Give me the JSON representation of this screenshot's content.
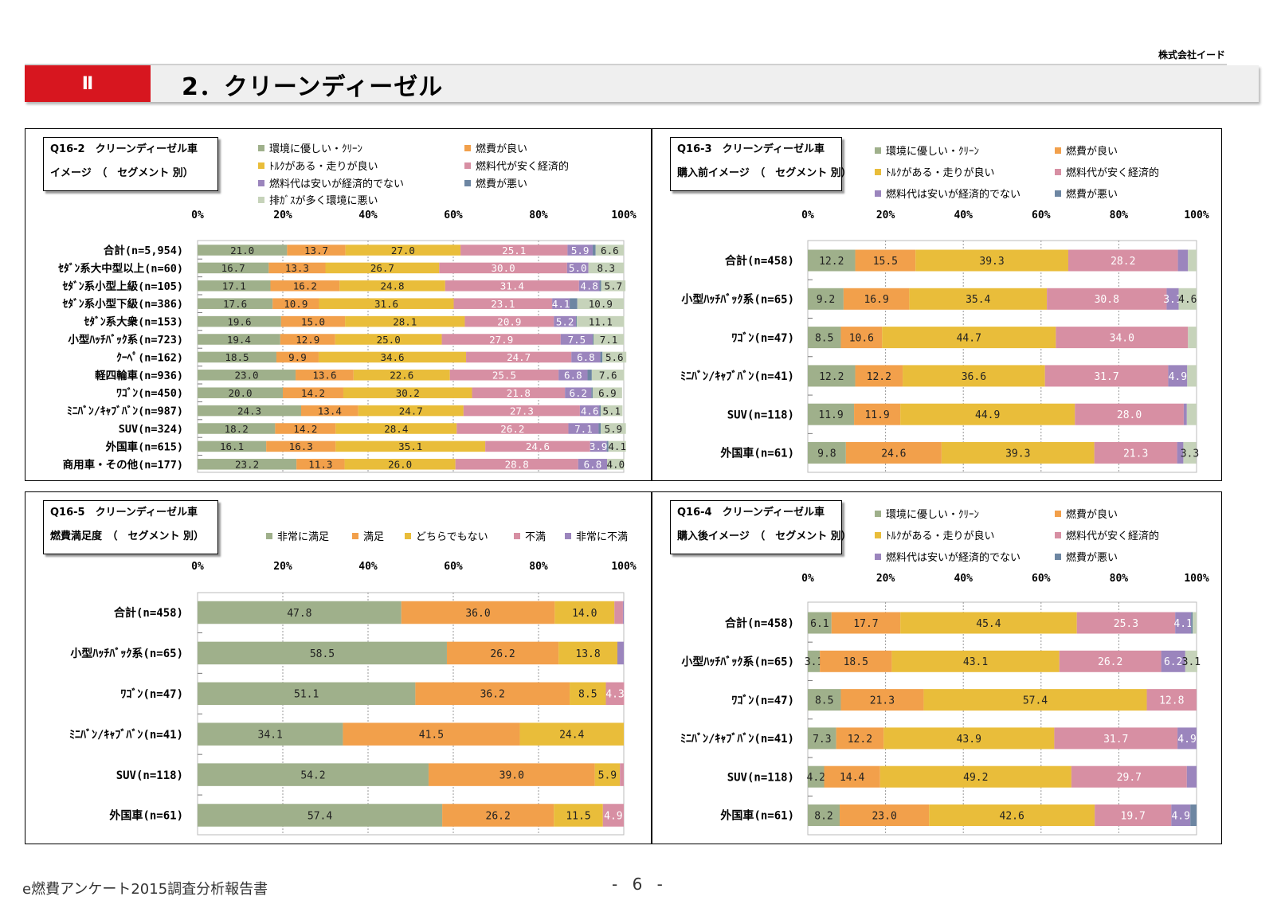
{
  "company": "株式会社イード",
  "chapter": "Ⅱ",
  "section_title": "2．クリーンディーゼル",
  "footer_left": "e燃費アンケート2015調査分析報告書",
  "footer_page": "- 6 -",
  "colors": {
    "green": "#9fb08b",
    "orange": "#f2a04b",
    "yellow": "#e9bd3a",
    "pink": "#d78fa3",
    "purple": "#9b85bd",
    "blue": "#6d86a2",
    "lightgreen": "#c6d3ba"
  },
  "chart_data": [
    {
      "id": "q16_2",
      "type": "bar",
      "title_lines": [
        "Q16-2　クリーンディーゼル車",
        "イメージ　（　セグメント 別）"
      ],
      "axis_ticks": [
        "0%",
        "20%",
        "40%",
        "60%",
        "80%",
        "100%"
      ],
      "legend": [
        {
          "label": "環境に優しい・ｸﾘｰﾝ",
          "color": "#9fb08b"
        },
        {
          "label": "燃費が良い",
          "color": "#f2a04b"
        },
        {
          "label": "ﾄﾙｸがある・走りが良い",
          "color": "#e9bd3a"
        },
        {
          "label": "燃料代が安く経済的",
          "color": "#d78fa3"
        },
        {
          "label": "燃料代は安いが経済的でない",
          "color": "#9b85bd"
        },
        {
          "label": "燃費が悪い",
          "color": "#6d86a2"
        },
        {
          "label": "排ｶﾞｽが多く環境に悪い",
          "color": "#c6d3ba"
        }
      ],
      "categories": [
        "合計(n=5,954)",
        "ｾﾀﾞﾝ系大中型以上(n=60)",
        "ｾﾀﾞﾝ系小型上級(n=105)",
        "ｾﾀﾞﾝ系小型下級(n=386)",
        "ｾﾀﾞﾝ系大衆(n=153)",
        "小型ﾊｯﾁﾊﾞｯｸ系(n=723)",
        "ｸｰﾍﾟ(n=162)",
        "軽四輪車(n=936)",
        "ﾜｺﾞﾝ(n=450)",
        "ﾐﾆﾊﾞﾝ/ｷｬﾌﾞﾊﾞﾝ(n=987)",
        "SUV(n=324)",
        "外国車(n=615)",
        "商用車・その他(n=177)"
      ],
      "series": [
        {
          "name": "環境に優しい・ｸﾘｰﾝ",
          "values": [
            21.0,
            16.7,
            17.1,
            17.6,
            19.6,
            19.4,
            18.5,
            23.0,
            20.0,
            24.3,
            18.2,
            16.1,
            23.2
          ]
        },
        {
          "name": "燃費が良い",
          "values": [
            13.7,
            13.3,
            16.2,
            10.9,
            15.0,
            12.9,
            9.9,
            13.6,
            14.2,
            13.4,
            14.2,
            16.3,
            11.3
          ]
        },
        {
          "name": "ﾄﾙｸがある・走りが良い",
          "values": [
            27.0,
            26.7,
            24.8,
            31.6,
            28.1,
            25.0,
            34.6,
            22.6,
            30.2,
            24.7,
            28.4,
            35.1,
            26.0
          ]
        },
        {
          "name": "燃料代が安く経済的",
          "values": [
            25.1,
            30.0,
            31.4,
            23.1,
            20.9,
            27.9,
            24.7,
            25.5,
            21.8,
            27.3,
            26.2,
            24.6,
            28.8
          ]
        },
        {
          "name": "燃料代は安いが経済的でない",
          "values": [
            5.9,
            5.0,
            4.8,
            4.1,
            5.2,
            7.5,
            6.8,
            6.8,
            6.2,
            4.6,
            7.1,
            3.9,
            6.8
          ]
        },
        {
          "name": "燃費が悪い",
          "values": [
            0.7,
            0,
            0.4,
            1.8,
            0.2,
            0.2,
            0.5,
            1.0,
            0.3,
            0.3,
            0.5,
            0.4,
            0
          ]
        },
        {
          "name": "排ｶﾞｽが多く環境に悪い",
          "values": [
            6.6,
            8.3,
            5.7,
            10.9,
            11.1,
            7.1,
            5.6,
            7.6,
            6.9,
            5.1,
            5.9,
            4.1,
            4.0
          ]
        }
      ]
    },
    {
      "id": "q16_3",
      "type": "bar",
      "title_lines": [
        "Q16-3　クリーンディーゼル車",
        "購入前イメージ　（　セグメント 別）"
      ],
      "axis_ticks": [
        "0%",
        "20%",
        "40%",
        "60%",
        "80%",
        "100%"
      ],
      "legend": [
        {
          "label": "環境に優しい・ｸﾘｰﾝ",
          "color": "#9fb08b"
        },
        {
          "label": "燃費が良い",
          "color": "#f2a04b"
        },
        {
          "label": "ﾄﾙｸがある・走りが良い",
          "color": "#e9bd3a"
        },
        {
          "label": "燃料代が安く経済的",
          "color": "#d78fa3"
        },
        {
          "label": "燃料代は安いが経済的でない",
          "color": "#9b85bd"
        },
        {
          "label": "燃費が悪い",
          "color": "#6d86a2"
        }
      ],
      "categories": [
        "合計(n=458)",
        "小型ﾊｯﾁﾊﾞｯｸ系(n=65)",
        "ﾜｺﾞﾝ(n=47)",
        "ﾐﾆﾊﾞﾝ/ｷｬﾌﾞﾊﾞﾝ(n=41)",
        "SUV(n=118)",
        "外国車(n=61)"
      ],
      "series": [
        {
          "name": "環境に優しい・ｸﾘｰﾝ",
          "values": [
            12.2,
            9.2,
            8.5,
            12.2,
            11.9,
            9.8
          ]
        },
        {
          "name": "燃費が良い",
          "values": [
            15.5,
            16.9,
            10.6,
            12.2,
            11.9,
            24.6
          ]
        },
        {
          "name": "ﾄﾙｸがある・走りが良い",
          "values": [
            39.3,
            35.4,
            44.7,
            36.6,
            44.9,
            39.3
          ]
        },
        {
          "name": "燃料代が安く経済的",
          "values": [
            28.2,
            30.8,
            34.0,
            31.7,
            28.0,
            21.3
          ]
        },
        {
          "name": "燃料代は安いが経済的でない",
          "values": [
            2.6,
            3.1,
            0,
            4.9,
            0.8,
            1.6
          ]
        },
        {
          "name": "燃費が悪い",
          "values": [
            0,
            0,
            0,
            0,
            0,
            0
          ]
        },
        {
          "name": "",
          "values": [
            2.2,
            4.6,
            2.2,
            2.4,
            2.5,
            3.3
          ]
        }
      ]
    },
    {
      "id": "q16_5",
      "type": "bar",
      "title_lines": [
        "Q16-5　クリーンディーゼル車",
        "燃費満足度　（　セグメント 別）"
      ],
      "axis_ticks": [
        "0%",
        "20%",
        "40%",
        "60%",
        "80%",
        "100%"
      ],
      "legend": [
        {
          "label": "非常に満足",
          "color": "#9fb08b"
        },
        {
          "label": "満足",
          "color": "#f2a04b"
        },
        {
          "label": "どちらでもない",
          "color": "#e9bd3a"
        },
        {
          "label": "不満",
          "color": "#d78fa3"
        },
        {
          "label": "非常に不満",
          "color": "#9b85bd"
        }
      ],
      "categories": [
        "合計(n=458)",
        "小型ﾊｯﾁﾊﾞｯｸ系(n=65)",
        "ﾜｺﾞﾝ(n=47)",
        "ﾐﾆﾊﾞﾝ/ｷｬﾌﾞﾊﾞﾝ(n=41)",
        "SUV(n=118)",
        "外国車(n=61)"
      ],
      "series": [
        {
          "name": "非常に満足",
          "values": [
            47.8,
            58.5,
            51.1,
            34.1,
            54.2,
            57.4
          ]
        },
        {
          "name": "満足",
          "values": [
            36.0,
            26.2,
            36.2,
            41.5,
            39.0,
            26.2
          ]
        },
        {
          "name": "どちらでもない",
          "values": [
            14.0,
            13.8,
            8.5,
            24.4,
            5.9,
            11.5
          ]
        },
        {
          "name": "不満",
          "values": [
            2.0,
            0,
            4.3,
            0,
            0.9,
            4.9
          ]
        },
        {
          "name": "非常に不満",
          "values": [
            0.2,
            1.5,
            0,
            0,
            0,
            0
          ]
        }
      ]
    },
    {
      "id": "q16_4",
      "type": "bar",
      "title_lines": [
        "Q16-4　クリーンディーゼル車",
        "購入後イメージ　（　セグメント 別）"
      ],
      "axis_ticks": [
        "0%",
        "20%",
        "40%",
        "60%",
        "80%",
        "100%"
      ],
      "legend": [
        {
          "label": "環境に優しい・ｸﾘｰﾝ",
          "color": "#9fb08b"
        },
        {
          "label": "燃費が良い",
          "color": "#f2a04b"
        },
        {
          "label": "ﾄﾙｸがある・走りが良い",
          "color": "#e9bd3a"
        },
        {
          "label": "燃料代が安く経済的",
          "color": "#d78fa3"
        },
        {
          "label": "燃料代は安いが経済的でない",
          "color": "#9b85bd"
        },
        {
          "label": "燃費が悪い",
          "color": "#6d86a2"
        }
      ],
      "categories": [
        "合計(n=458)",
        "小型ﾊｯﾁﾊﾞｯｸ系(n=65)",
        "ﾜｺﾞﾝ(n=47)",
        "ﾐﾆﾊﾞﾝ/ｷｬﾌﾞﾊﾞﾝ(n=41)",
        "SUV(n=118)",
        "外国車(n=61)"
      ],
      "series": [
        {
          "name": "環境に優しい・ｸﾘｰﾝ",
          "values": [
            6.1,
            3.1,
            8.5,
            7.3,
            4.2,
            8.2
          ]
        },
        {
          "name": "燃費が良い",
          "values": [
            17.7,
            18.5,
            21.3,
            12.2,
            14.4,
            23.0
          ]
        },
        {
          "name": "ﾄﾙｸがある・走りが良い",
          "values": [
            45.4,
            43.1,
            57.4,
            43.9,
            49.2,
            42.6
          ]
        },
        {
          "name": "燃料代が安く経済的",
          "values": [
            25.3,
            26.2,
            12.8,
            31.7,
            29.7,
            19.7
          ]
        },
        {
          "name": "燃料代は安いが経済的でない",
          "values": [
            4.1,
            6.2,
            0,
            4.9,
            2.5,
            4.9
          ]
        },
        {
          "name": "燃費が悪い",
          "values": [
            0.4,
            0,
            0,
            0,
            0,
            1.6
          ]
        },
        {
          "name": "",
          "values": [
            1.0,
            3.1,
            0,
            0,
            0,
            0
          ]
        }
      ]
    }
  ]
}
